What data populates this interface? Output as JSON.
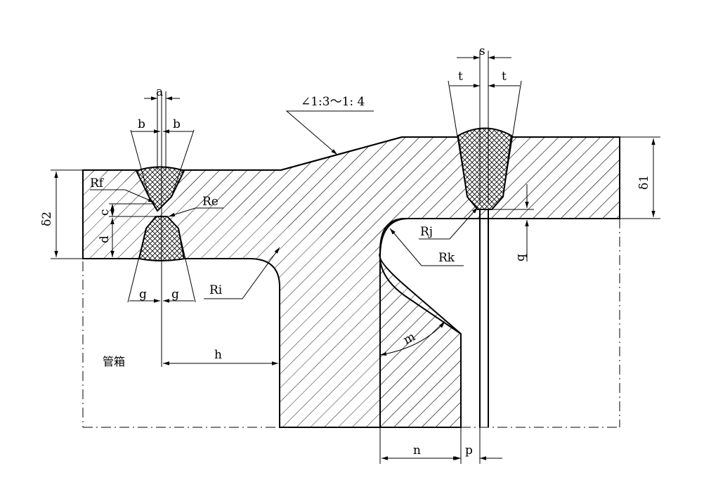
{
  "labels": {
    "a": "a",
    "b_left": "b",
    "b_right": "b",
    "taper": "∠1:3～1: 4",
    "s": "s",
    "t_left": "t",
    "t_right": "t",
    "delta2": "δ2",
    "delta1": "δ1",
    "Rf": "Rf",
    "Re": "Re",
    "c": "c",
    "d": "d",
    "Rj": "Rj",
    "Rk": "Rk",
    "q": "q",
    "g_left": "g",
    "g_right": "g",
    "Ri": "Ri",
    "h": "h",
    "m": "m",
    "n": "n",
    "p": "p",
    "chamber": "管箱"
  }
}
